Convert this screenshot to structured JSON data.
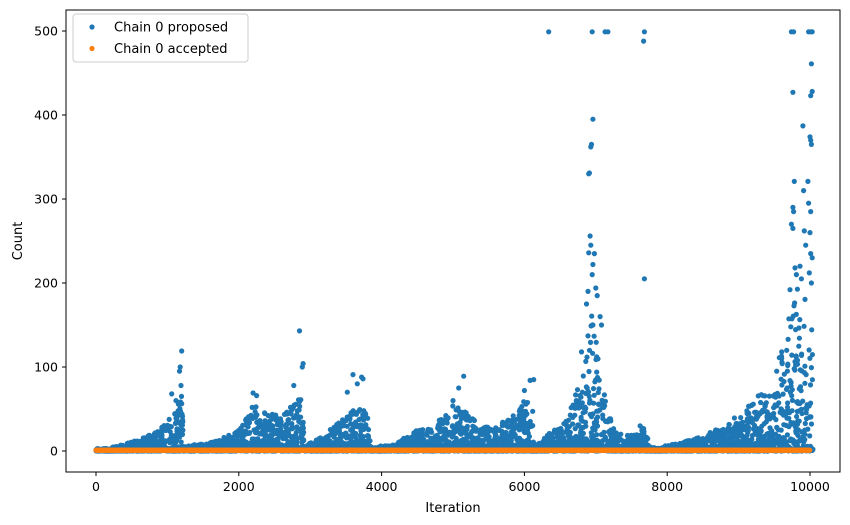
{
  "chart_data": {
    "type": "scatter",
    "xlabel": "Iteration",
    "ylabel": "Count",
    "xlim": [
      -420,
      10420
    ],
    "ylim": [
      -25,
      525
    ],
    "xticks": [
      0,
      2000,
      4000,
      6000,
      8000,
      10000
    ],
    "yticks": [
      0,
      100,
      200,
      300,
      400,
      500
    ],
    "grid": false,
    "legend_position": "top-left",
    "series": [
      {
        "name": "Chain 0 proposed",
        "color": "#1f77b4",
        "marker": "circle",
        "envelope": [
          [
            0,
            1
          ],
          [
            200,
            4
          ],
          [
            400,
            8
          ],
          [
            600,
            14
          ],
          [
            800,
            22
          ],
          [
            1000,
            35
          ],
          [
            1150,
            60
          ],
          [
            1200,
            78
          ],
          [
            1230,
            5
          ],
          [
            1400,
            8
          ],
          [
            1700,
            12
          ],
          [
            2000,
            25
          ],
          [
            2200,
            55
          ],
          [
            2400,
            48
          ],
          [
            2600,
            40
          ],
          [
            2800,
            60
          ],
          [
            2880,
            70
          ],
          [
            2920,
            5
          ],
          [
            3100,
            15
          ],
          [
            3300,
            28
          ],
          [
            3500,
            40
          ],
          [
            3650,
            55
          ],
          [
            3800,
            50
          ],
          [
            3850,
            5
          ],
          [
            4000,
            6
          ],
          [
            4200,
            8
          ],
          [
            4400,
            22
          ],
          [
            4700,
            30
          ],
          [
            5000,
            55
          ],
          [
            5200,
            45
          ],
          [
            5400,
            28
          ],
          [
            5600,
            30
          ],
          [
            5800,
            40
          ],
          [
            6000,
            60
          ],
          [
            6100,
            80
          ],
          [
            6140,
            5
          ],
          [
            6300,
            18
          ],
          [
            6500,
            30
          ],
          [
            6700,
            60
          ],
          [
            6850,
            120
          ],
          [
            6950,
            170
          ],
          [
            7050,
            110
          ],
          [
            7150,
            60
          ],
          [
            7200,
            40
          ],
          [
            7300,
            20
          ],
          [
            7500,
            20
          ],
          [
            7700,
            30
          ],
          [
            7750,
            5
          ],
          [
            7900,
            5
          ],
          [
            8200,
            10
          ],
          [
            8500,
            18
          ],
          [
            8800,
            30
          ],
          [
            9100,
            50
          ],
          [
            9300,
            70
          ],
          [
            9500,
            90
          ],
          [
            9700,
            160
          ],
          [
            9850,
            200
          ],
          [
            10000,
            190
          ],
          [
            10040,
            120
          ]
        ],
        "highlights": [
          [
            1200,
            119
          ],
          [
            1180,
            100
          ],
          [
            1170,
            95
          ],
          [
            1190,
            78
          ],
          [
            1060,
            68
          ],
          [
            1120,
            60
          ],
          [
            2850,
            143
          ],
          [
            2900,
            104
          ],
          [
            2890,
            100
          ],
          [
            2770,
            78
          ],
          [
            2200,
            69
          ],
          [
            2250,
            66
          ],
          [
            3600,
            91
          ],
          [
            3720,
            88
          ],
          [
            3740,
            86
          ],
          [
            3660,
            80
          ],
          [
            3520,
            70
          ],
          [
            5150,
            89
          ],
          [
            5080,
            75
          ],
          [
            5000,
            60
          ],
          [
            6080,
            84
          ],
          [
            6130,
            85
          ],
          [
            6000,
            72
          ],
          [
            6340,
            499
          ],
          [
            6950,
            499
          ],
          [
            7130,
            499
          ],
          [
            7170,
            499
          ],
          [
            7680,
            499
          ],
          [
            7670,
            488
          ],
          [
            6960,
            395
          ],
          [
            6940,
            365
          ],
          [
            6930,
            362
          ],
          [
            6910,
            331
          ],
          [
            6900,
            330
          ],
          [
            6920,
            256
          ],
          [
            6930,
            245
          ],
          [
            6900,
            236
          ],
          [
            6980,
            235
          ],
          [
            6960,
            222
          ],
          [
            6950,
            210
          ],
          [
            7000,
            194
          ],
          [
            6890,
            190
          ],
          [
            7020,
            185
          ],
          [
            6870,
            175
          ],
          [
            7060,
            160
          ],
          [
            6960,
            150
          ],
          [
            7080,
            150
          ],
          [
            6800,
            118
          ],
          [
            7680,
            205
          ],
          [
            7620,
            30
          ],
          [
            9740,
            499
          ],
          [
            9770,
            499
          ],
          [
            9980,
            499
          ],
          [
            10010,
            499
          ],
          [
            10030,
            499
          ],
          [
            10020,
            461
          ],
          [
            10030,
            428
          ],
          [
            10010,
            423
          ],
          [
            9760,
            427
          ],
          [
            9900,
            387
          ],
          [
            10000,
            374
          ],
          [
            10010,
            370
          ],
          [
            10020,
            365
          ],
          [
            9780,
            321
          ],
          [
            9970,
            321
          ],
          [
            9760,
            290
          ],
          [
            9770,
            285
          ],
          [
            9910,
            310
          ],
          [
            9980,
            295
          ],
          [
            10010,
            285
          ],
          [
            9740,
            270
          ],
          [
            9760,
            265
          ],
          [
            9920,
            262
          ],
          [
            10000,
            260
          ],
          [
            9940,
            245
          ],
          [
            10010,
            235
          ],
          [
            10030,
            230
          ],
          [
            9860,
            220
          ],
          [
            9790,
            218
          ],
          [
            9810,
            210
          ],
          [
            9990,
            212
          ],
          [
            9880,
            205
          ],
          [
            10020,
            200
          ],
          [
            9720,
            192
          ]
        ]
      },
      {
        "name": "Chain 0 accepted",
        "color": "#ff7f0e",
        "marker": "circle",
        "values_note_level": 1,
        "x_range": [
          0,
          10000
        ]
      }
    ]
  }
}
